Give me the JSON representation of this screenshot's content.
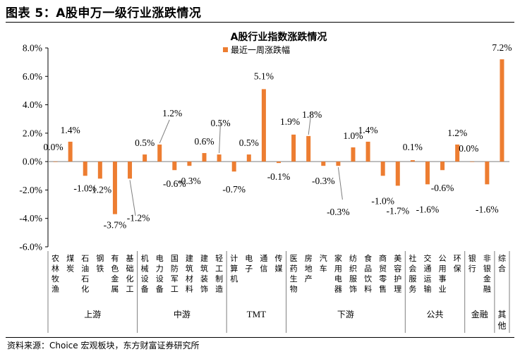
{
  "figure_title": "图表 5：A股申万一级行业涨跌情况",
  "source_note": "资料来源：Choice 宏观板块，东方财富证券研究所",
  "colors": {
    "bar": "#ED7D31",
    "axis": "#000000"
  },
  "chart_data": {
    "type": "bar",
    "title": "A股行业指数涨跌情况",
    "legend_position": "top",
    "grid": false,
    "ylim": [
      -6,
      8
    ],
    "yticks": [
      "8.0%",
      "6.0%",
      "4.0%",
      "2.0%",
      "0.0%",
      "-2.0%",
      "-4.0%",
      "-6.0%"
    ],
    "categories": [
      "农林牧渔",
      "煤炭",
      "石油石化",
      "钢铁",
      "有色金属",
      "基础化工",
      "机械设备",
      "电力设备",
      "国防军工",
      "建筑材料",
      "建筑装饰",
      "轻工制造",
      "计算机",
      "电子",
      "通信",
      "传媒",
      "医药生物",
      "房地产",
      "汽车",
      "家用电器",
      "纺织服饰",
      "食品饮料",
      "商贸零售",
      "美容护理",
      "社会服务",
      "交通运输",
      "公用事业",
      "环保",
      "银行",
      "非银金融",
      "综合"
    ],
    "series": [
      {
        "name": "最近一周涨跌幅",
        "values": [
          0.0,
          1.4,
          -1.0,
          -1.2,
          -3.7,
          -1.2,
          0.5,
          1.2,
          -0.6,
          -0.3,
          0.6,
          0.5,
          -0.7,
          0.5,
          5.1,
          -0.1,
          1.9,
          1.8,
          -0.3,
          -0.3,
          1.0,
          1.4,
          -1.0,
          -1.7,
          0.1,
          -1.6,
          -0.6,
          1.2,
          0.0,
          -1.6,
          7.2
        ],
        "data_labels": [
          "0.0%",
          "1.4%",
          "-1.0%",
          "-1.2%",
          "-3.7%",
          "-1.2%",
          "0.5%",
          "1.2%",
          "-0.6%",
          "-0.3%",
          "0.6%",
          "0.5%",
          "-0.7%",
          "0.5%",
          "5.1%",
          "-0.1%",
          "1.9%",
          "1.8%",
          "-0.3%",
          "-0.3%",
          "1.0%",
          "1.4%",
          "-1.0%",
          "-1.7%",
          "0.1%",
          "-1.6%",
          "-0.6%",
          "1.2%",
          "0.0%",
          "-1.6%",
          "7.2%"
        ]
      }
    ],
    "groups": [
      {
        "label": "上游",
        "count": 6
      },
      {
        "label": "中游",
        "count": 6
      },
      {
        "label": "TMT",
        "count": 4
      },
      {
        "label": "下游",
        "count": 8
      },
      {
        "label": "公共",
        "count": 4
      },
      {
        "label": "金融",
        "count": 2
      },
      {
        "label": "其他",
        "count": 1
      }
    ]
  }
}
